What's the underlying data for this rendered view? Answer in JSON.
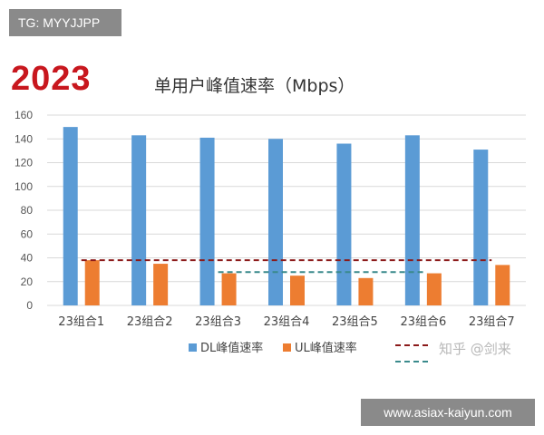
{
  "overlay": {
    "tg_badge": "TG: MYYJJPP",
    "site_badge": "www.asiax-kaiyun.com",
    "watermark": "知乎 @剑来"
  },
  "colors": {
    "dl": "#5b9bd5",
    "ul": "#ed7d31",
    "ref_dark_red": "#8b1a1a",
    "ref_teal": "#3a8a8c",
    "grid": "#d9d9d9",
    "year": "#c8171e"
  },
  "chart_data": {
    "type": "bar",
    "year_label": "2023",
    "title": "单用户峰值速率（Mbps）",
    "categories": [
      "23组合1",
      "23组合2",
      "23组合3",
      "23组合4",
      "23组合5",
      "23组合6",
      "23组合7"
    ],
    "series": [
      {
        "name": "DL峰值速率",
        "color": "#5b9bd5",
        "values": [
          150,
          143,
          141,
          140,
          136,
          143,
          131
        ]
      },
      {
        "name": "UL峰值速率",
        "color": "#ed7d31",
        "values": [
          38,
          35,
          27,
          25,
          23,
          27,
          34
        ]
      }
    ],
    "reference_lines": [
      {
        "value": 38,
        "color": "#8b1a1a",
        "from_category": 0,
        "to_category": 6
      },
      {
        "value": 28,
        "color": "#3a8a8c",
        "from_category": 2,
        "to_category": 5
      }
    ],
    "ylim": [
      0,
      160
    ],
    "yticks": [
      0,
      20,
      40,
      60,
      80,
      100,
      120,
      140,
      160
    ],
    "grid": true,
    "legend_position": "bottom"
  }
}
